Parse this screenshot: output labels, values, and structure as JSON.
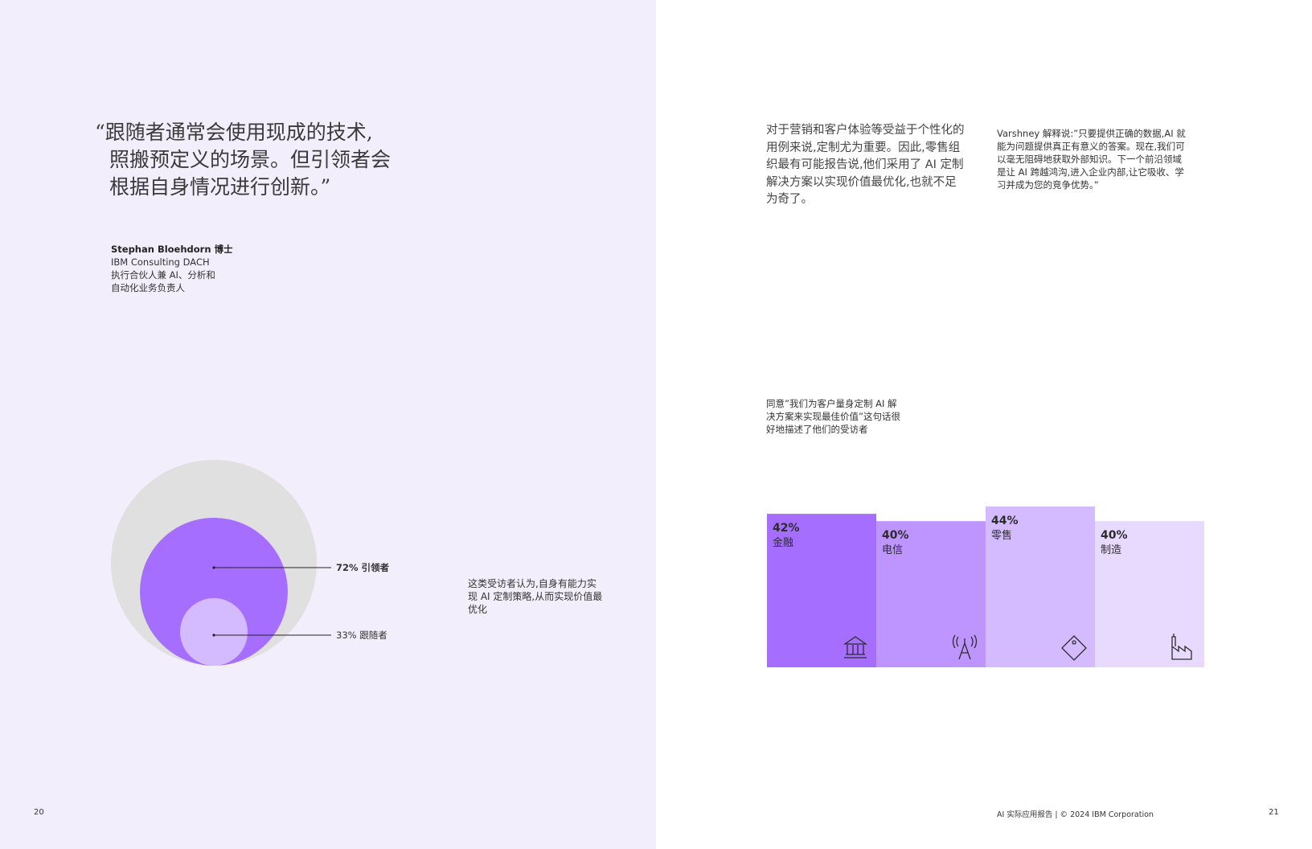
{
  "left": {
    "quote_lines": [
      "“跟随者通常会使用现成的技术,",
      "照搬预定义的场景。但引领者会",
      "根据自身情况进行创新。”"
    ],
    "attribution": {
      "name": "Stephan Bloehdorn 博士",
      "org": "IBM Consulting DACH",
      "role_line1": "执行合伙人兼 AI、分析和",
      "role_line2": "自动化业务负责人"
    },
    "note": "这类受访者认为,自身有能力实现 AI 定制策略,从而实现价值最优化",
    "page_number": "20"
  },
  "bubble_chart": {
    "series": [
      {
        "label": "72% 引领者",
        "value": 72,
        "color": "#a56eff",
        "bold": true
      },
      {
        "label": "33% 跟随者",
        "value": 33,
        "color": "#d4bbff",
        "bold": false
      }
    ],
    "outer_color": "#e0e0e0"
  },
  "right": {
    "intro": "对于营销和客户体验等受益于个性化的用例来说,定制尤为重要。因此,零售组织最有可能报告说,他们采用了 AI 定制解决方案以实现价值最优化,也就不足为奇了。",
    "quote": "Varshney 解释说:”只要提供正确的数据,AI 就能为问题提供真正有意义的答案。现在,我们可以毫无阻碍地获取外部知识。下一个前沿领域是让 AI 跨越鸿沟,进入企业内部,让它吸收、学习并成为您的竞争优势。”",
    "chart_caption": "同意”我们为客户量身定制 AI 解决方案来实现最佳价值”这句话很好地描述了他们的受访者",
    "footer": "AI 实际应用报告 | © 2024 IBM Corporation",
    "page_number": "21"
  },
  "chart_data": {
    "type": "bar",
    "categories": [
      "金融",
      "电信",
      "零售",
      "制造"
    ],
    "values": [
      42,
      40,
      44,
      40
    ],
    "value_labels": [
      "42%",
      "40%",
      "44%",
      "40%"
    ],
    "colors": [
      "#a56eff",
      "#be95ff",
      "#d4bbff",
      "#e8daff"
    ],
    "icons": [
      "bank-icon",
      "tower-icon",
      "price-tag-icon",
      "factory-icon"
    ]
  }
}
